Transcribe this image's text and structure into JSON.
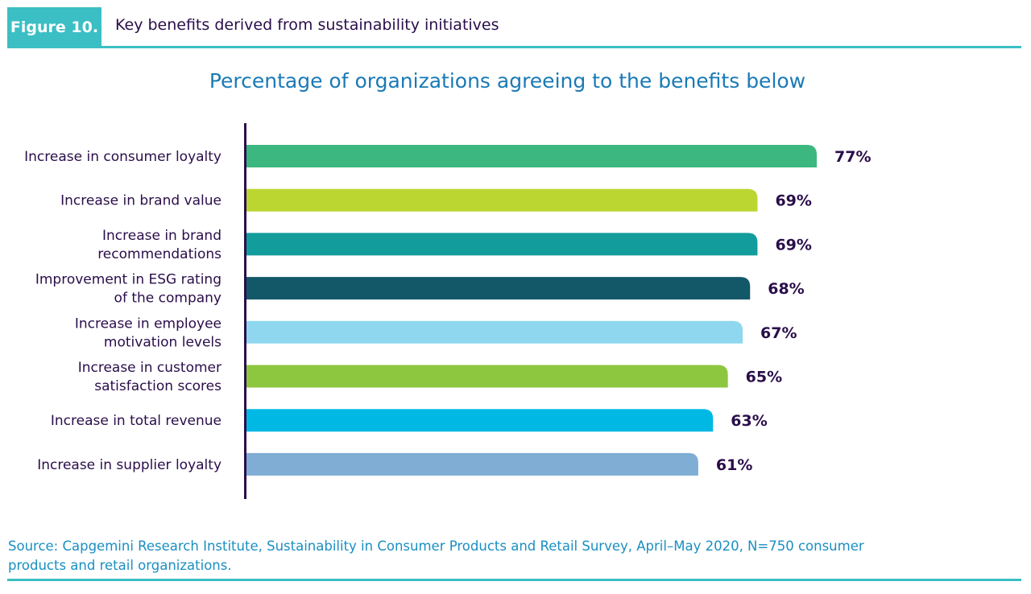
{
  "header": {
    "figure_tag": "Figure 10.",
    "title": "Key benefits derived from sustainability initiatives",
    "accent": "#3bbfc4"
  },
  "chart_data": {
    "type": "bar",
    "orientation": "horizontal",
    "title": "Percentage of organizations agreeing to the benefits below",
    "categories": [
      "Increase in consumer loyalty",
      "Increase in brand value",
      "Increase in brand\nrecommendations",
      "Improvement in ESG rating\nof the company",
      "Increase in employee\nmotivation levels",
      "Increase in customer\nsatisfaction scores",
      "Increase in total revenue",
      "Increase in supplier loyalty"
    ],
    "values": [
      77,
      69,
      69,
      68,
      67,
      65,
      63,
      61
    ],
    "value_labels": [
      "77%",
      "69%",
      "69%",
      "68%",
      "67%",
      "65%",
      "63%",
      "61%"
    ],
    "colors": [
      "#3bb77f",
      "#bcd631",
      "#139c9c",
      "#135869",
      "#8fd7ef",
      "#8dc63f",
      "#00b8e4",
      "#7fadd4"
    ],
    "unit": "%",
    "grid": false
  },
  "source": "Source: Capgemini Research Institute, Sustainability in Consumer Products and Retail Survey, April–May 2020, N=750 consumer products and retail organizations."
}
